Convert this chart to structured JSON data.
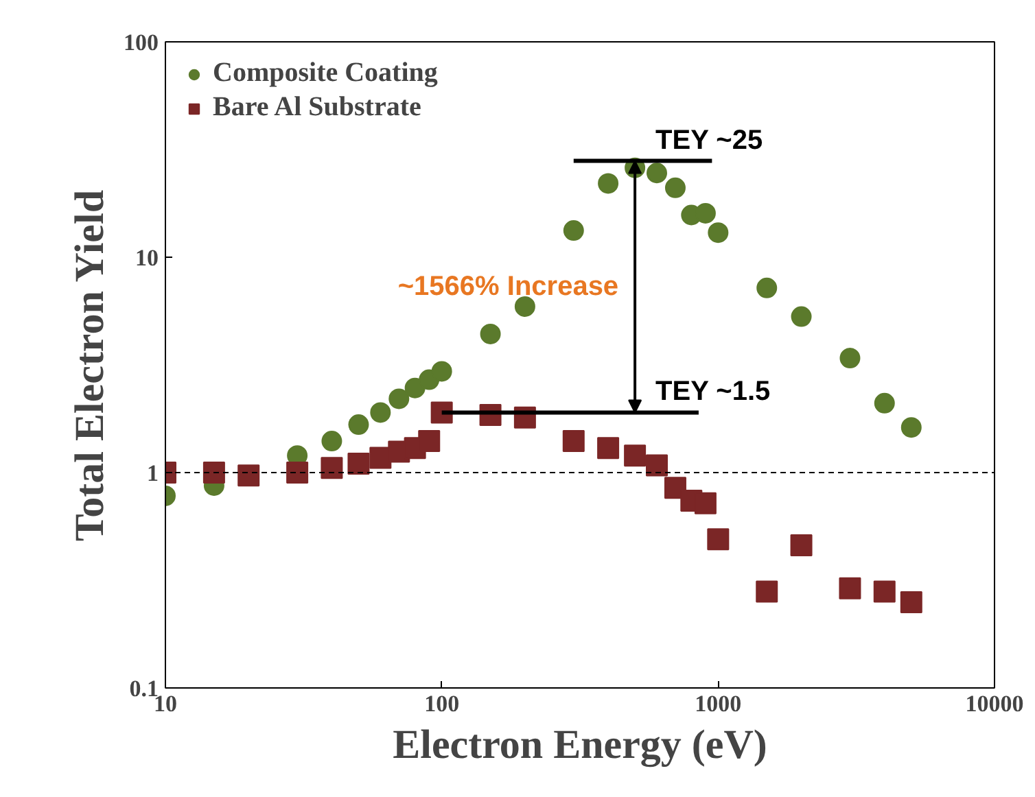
{
  "chart_data": {
    "type": "scatter",
    "xlabel": "Electron Energy (eV)",
    "ylabel": "Total Electron Yield",
    "log": "xy",
    "x": [
      10,
      15,
      20,
      30,
      40,
      50,
      60,
      70,
      80,
      90,
      100,
      150,
      200,
      300,
      400,
      500,
      600,
      700,
      800,
      900,
      1000,
      1500,
      2000,
      3000,
      4000,
      5000
    ],
    "series": [
      {
        "name": "Composite Coating",
        "color": "#5b7a2c",
        "marker": "circle",
        "values": [
          0.78,
          0.87,
          null,
          1.2,
          1.4,
          1.67,
          1.9,
          2.2,
          2.47,
          2.7,
          2.95,
          4.4,
          5.9,
          13.3,
          22,
          26,
          24.6,
          21,
          15.7,
          16,
          13,
          7.2,
          5.3,
          3.4,
          2.1,
          1.62
        ]
      },
      {
        "name": "Bare Al Substrate",
        "color": "#7b2626",
        "marker": "square",
        "values": [
          1.0,
          1.0,
          0.97,
          1.0,
          1.05,
          1.1,
          1.17,
          1.25,
          1.3,
          1.4,
          1.9,
          1.85,
          1.8,
          1.4,
          1.3,
          1.2,
          1.08,
          0.85,
          0.74,
          0.72,
          0.49,
          0.28,
          0.46,
          0.29,
          0.28,
          0.25
        ]
      }
    ],
    "xlim": [
      10,
      10000
    ],
    "ylim": [
      0.1,
      100
    ],
    "xticks": [
      10,
      100,
      1000,
      10000
    ],
    "yticks": [
      0.1,
      1,
      10,
      100
    ],
    "ref_lines": [
      {
        "axis": "y",
        "value": 1,
        "line_style": "dashed",
        "color": "#000000"
      }
    ],
    "annotations": [
      {
        "text": "TEY ~25",
        "x": 500,
        "y": 28
      },
      {
        "text": "TEY ~1.5",
        "x": 100,
        "y": 1.9
      },
      "~1566% Increase"
    ],
    "legend": "top left",
    "grid": false
  }
}
